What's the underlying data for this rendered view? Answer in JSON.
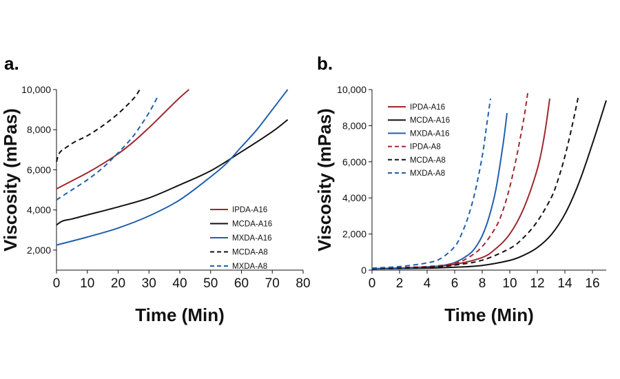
{
  "colors": {
    "IPDA": "#a0262d",
    "MCDA": "#111111",
    "MXDA": "#1f5fad"
  },
  "chart_data": [
    {
      "type": "line",
      "panel_label": "a.",
      "xlabel": "Time (Min)",
      "ylabel": "Viscosity (mPas)",
      "xlim": [
        0,
        80
      ],
      "ylim": [
        1000,
        10000
      ],
      "x_ticks": [
        "0",
        "10",
        "20",
        "30",
        "40",
        "50",
        "60",
        "70",
        "80"
      ],
      "y_ticks": [
        "2,000",
        "4,000",
        "6,000",
        "8,000",
        "10,000"
      ],
      "legend_position": "bottom-right",
      "series": [
        {
          "name": "IPDA-A16",
          "color": "IPDA",
          "dash": "solid",
          "x": [
            0,
            5,
            10,
            15,
            20,
            25,
            30,
            35,
            40,
            43
          ],
          "y": [
            5050,
            5450,
            5850,
            6300,
            6800,
            7400,
            8100,
            8850,
            9600,
            10000
          ]
        },
        {
          "name": "MCDA-A16",
          "color": "MCDA",
          "dash": "solid",
          "x": [
            0,
            2,
            5,
            10,
            20,
            30,
            40,
            50,
            60,
            70,
            75
          ],
          "y": [
            3250,
            3450,
            3550,
            3750,
            4150,
            4600,
            5250,
            5950,
            6900,
            7900,
            8500
          ]
        },
        {
          "name": "MXDA-A16",
          "color": "MXDA",
          "dash": "solid",
          "x": [
            0,
            10,
            20,
            30,
            40,
            50,
            55,
            60,
            65,
            70,
            75
          ],
          "y": [
            2250,
            2650,
            3100,
            3700,
            4500,
            5650,
            6300,
            7150,
            8000,
            9000,
            10000
          ]
        },
        {
          "name": "MCDA-A8",
          "color": "MCDA",
          "dash": "dashed",
          "x": [
            0,
            1,
            3,
            6,
            10,
            15,
            20,
            25,
            27
          ],
          "y": [
            6400,
            6850,
            7100,
            7400,
            7700,
            8200,
            8800,
            9550,
            10000
          ]
        },
        {
          "name": "MXDA-A8",
          "color": "MXDA",
          "dash": "dashed",
          "x": [
            0,
            5,
            10,
            15,
            20,
            25,
            30,
            33
          ],
          "y": [
            4500,
            5000,
            5500,
            6100,
            6850,
            7700,
            8850,
            9700
          ]
        }
      ]
    },
    {
      "type": "line",
      "panel_label": "b.",
      "xlabel": "Time (Min)",
      "ylabel": "Viscosity (mPas)",
      "xlim": [
        0,
        17
      ],
      "ylim": [
        0,
        10000
      ],
      "x_ticks": [
        "0",
        "2",
        "4",
        "6",
        "8",
        "10",
        "12",
        "14",
        "16"
      ],
      "y_ticks": [
        "0",
        "2,000",
        "4,000",
        "6,000",
        "8,000",
        "10,000"
      ],
      "legend_position": "top-left",
      "series": [
        {
          "name": "IPDA-A16",
          "color": "IPDA",
          "dash": "solid",
          "x": [
            0,
            2,
            4,
            6,
            8,
            9,
            10,
            11,
            12,
            12.5,
            12.9
          ],
          "y": [
            80,
            120,
            180,
            320,
            700,
            1200,
            2000,
            3400,
            5600,
            7400,
            9500
          ]
        },
        {
          "name": "MCDA-A16",
          "color": "MCDA",
          "dash": "solid",
          "x": [
            0,
            4,
            6,
            8,
            10,
            11,
            12,
            13,
            14,
            15,
            16,
            17
          ],
          "y": [
            70,
            110,
            160,
            260,
            540,
            820,
            1250,
            1950,
            3100,
            4800,
            7000,
            9400
          ]
        },
        {
          "name": "MXDA-A16",
          "color": "MXDA",
          "dash": "solid",
          "x": [
            0,
            2,
            4,
            5,
            6,
            7,
            7.5,
            8,
            8.5,
            9,
            9.5,
            9.8
          ],
          "y": [
            70,
            110,
            170,
            240,
            420,
            850,
            1250,
            1900,
            2950,
            4500,
            6900,
            8700
          ]
        },
        {
          "name": "IPDA-A8",
          "color": "IPDA",
          "dash": "dashed",
          "x": [
            0,
            4,
            6,
            7,
            8,
            9,
            9.5,
            10,
            10.5,
            11,
            11.3
          ],
          "y": [
            90,
            200,
            380,
            700,
            1300,
            2400,
            3300,
            4600,
            6300,
            8300,
            9800
          ]
        },
        {
          "name": "MCDA-A8",
          "color": "MCDA",
          "dash": "dashed",
          "x": [
            0,
            4,
            6,
            8,
            10,
            11,
            12,
            13,
            13.5,
            14,
            14.5,
            15
          ],
          "y": [
            80,
            150,
            280,
            550,
            1200,
            1800,
            2700,
            4000,
            5000,
            6300,
            7900,
            9700
          ]
        },
        {
          "name": "MXDA-A8",
          "color": "MXDA",
          "dash": "dashed",
          "x": [
            0,
            2,
            4,
            5,
            6,
            6.5,
            7,
            7.5,
            8,
            8.3,
            8.6
          ],
          "y": [
            110,
            200,
            400,
            650,
            1300,
            2000,
            3000,
            4400,
            6300,
            7900,
            9500
          ]
        }
      ]
    }
  ]
}
